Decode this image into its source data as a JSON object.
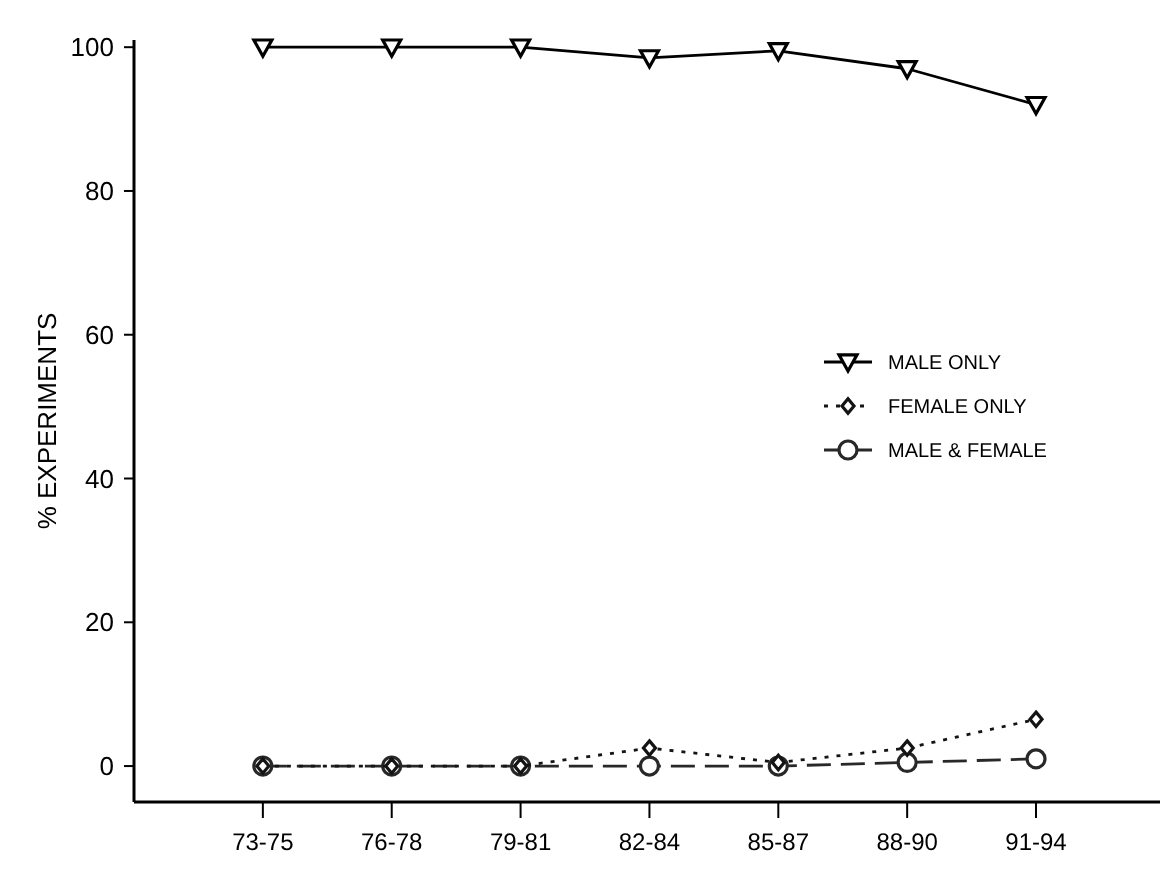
{
  "chart_data": {
    "type": "line",
    "ylabel": "% EXPERIMENTS",
    "categories": [
      "73-75",
      "76-78",
      "79-81",
      "82-84",
      "85-87",
      "88-90",
      "91-94"
    ],
    "series": [
      {
        "name": "MALE ONLY",
        "color": "#000000",
        "marker": "triangle",
        "line_style": "solid",
        "values": [
          100,
          100,
          100,
          98.5,
          99.5,
          97,
          92
        ]
      },
      {
        "name": "FEMALE ONLY",
        "color": "#141414",
        "marker": "diamond",
        "line_style": "dotted",
        "values": [
          0,
          0,
          0,
          2.5,
          0.5,
          2.5,
          6.5
        ]
      },
      {
        "name": "MALE & FEMALE",
        "color": "#282828",
        "marker": "circle",
        "line_style": "dashed",
        "values": [
          0,
          0,
          0,
          0,
          0,
          0.5,
          1
        ]
      }
    ],
    "ylim": [
      -5,
      101
    ],
    "yticks": [
      0,
      20,
      40,
      60,
      80,
      100
    ],
    "grid": false,
    "legend": "right"
  }
}
